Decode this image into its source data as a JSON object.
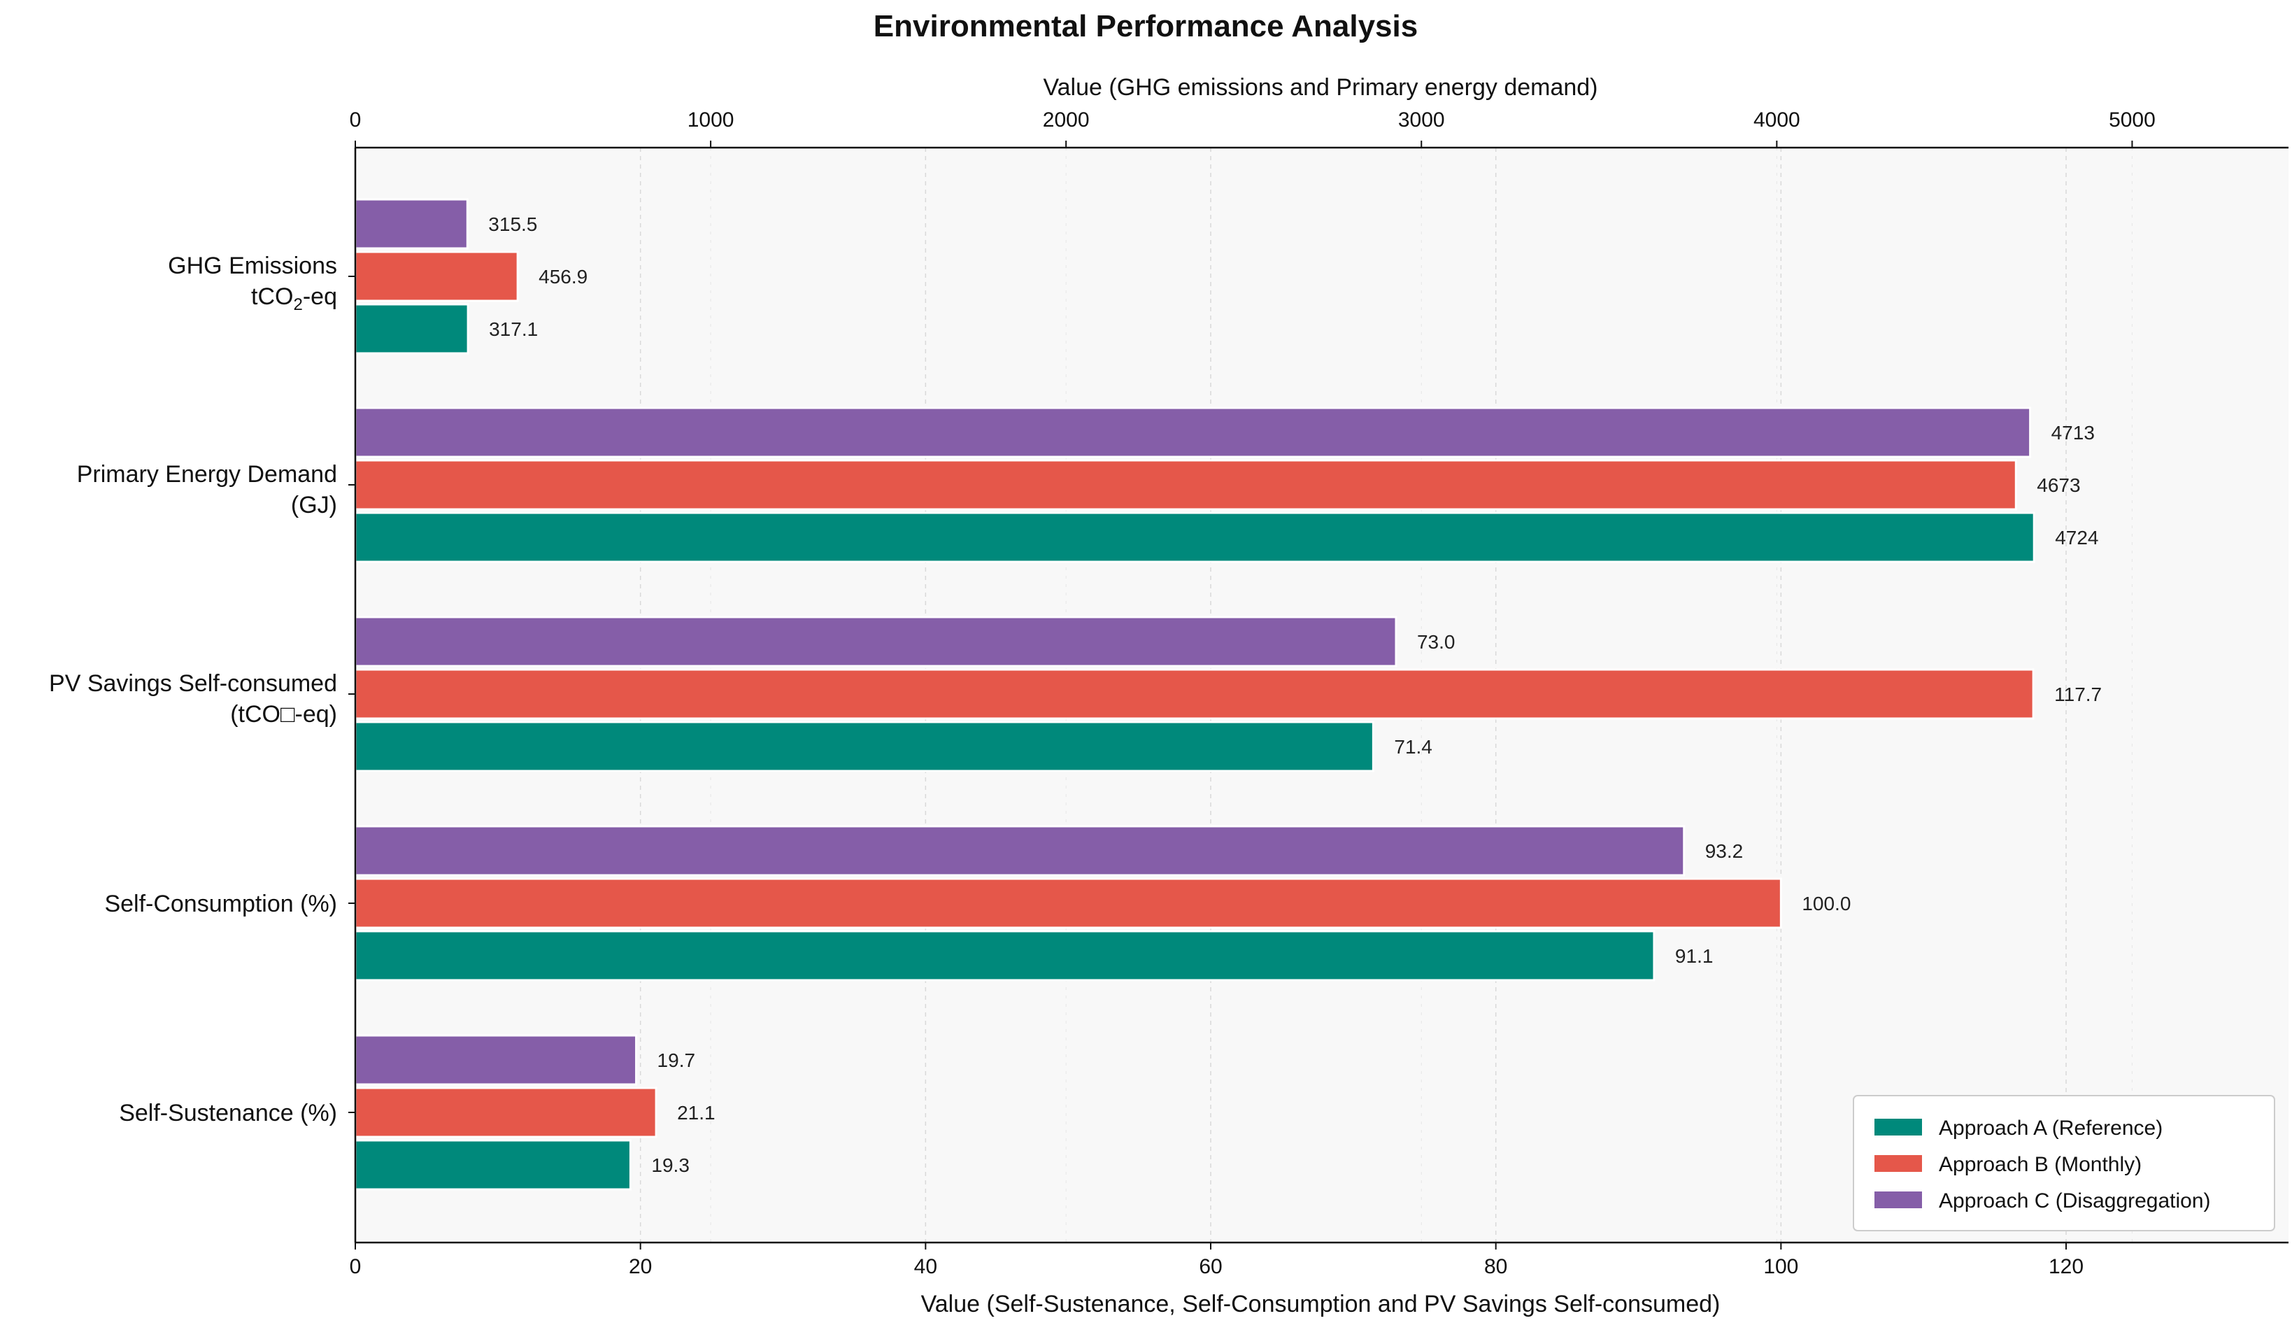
{
  "chart_data": {
    "type": "bar",
    "orientation": "horizontal",
    "title": "Environmental Performance Analysis",
    "xlabel_top": "Value (GHG emissions and Primary energy demand)",
    "xlabel_bottom": "Value (Self-Sustenance, Self-Consumption and PV Savings Self-consumed)",
    "xlim_top": [
      0,
      5440
    ],
    "xlim_bottom": [
      0,
      135.6
    ],
    "ticks_top": [
      0,
      1000,
      2000,
      3000,
      4000,
      5000
    ],
    "ticks_bottom": [
      0,
      20,
      40,
      60,
      80,
      100,
      120
    ],
    "grid": true,
    "legend_position": "lower-right",
    "categories": [
      {
        "label_line1": "GHG Emissions",
        "label_line2_prefix": "tCO",
        "label_line2_sub": "2",
        "label_line2_suffix": "-eq",
        "axis": "top"
      },
      {
        "label_line1": "Primary Energy Demand",
        "label_line2": "(GJ)",
        "axis": "top"
      },
      {
        "label_line1": "PV Savings Self-consumed",
        "label_line2": "(tCO□-eq)",
        "axis": "bottom"
      },
      {
        "label_line1": "Self-Consumption (%)",
        "axis": "bottom"
      },
      {
        "label_line1": "Self-Sustenance (%)",
        "axis": "bottom"
      }
    ],
    "series": [
      {
        "name": "Approach A (Reference)",
        "color": "#00897b",
        "values": [
          317.1,
          4724,
          71.4,
          91.1,
          19.3
        ],
        "labels": [
          "317.1",
          "4724",
          "71.4",
          "91.1",
          "19.3"
        ]
      },
      {
        "name": "Approach B (Monthly)",
        "color": "#e5574a",
        "values": [
          456.9,
          4673,
          117.7,
          100.0,
          21.1
        ],
        "labels": [
          "456.9",
          "4673",
          "117.7",
          "100.0",
          "21.1"
        ]
      },
      {
        "name": "Approach C (Disaggregation)",
        "color": "#855ea8",
        "values": [
          315.5,
          4713,
          73.0,
          93.2,
          19.7
        ],
        "labels": [
          "315.5",
          "4713",
          "73.0",
          "93.2",
          "19.7"
        ]
      }
    ]
  }
}
